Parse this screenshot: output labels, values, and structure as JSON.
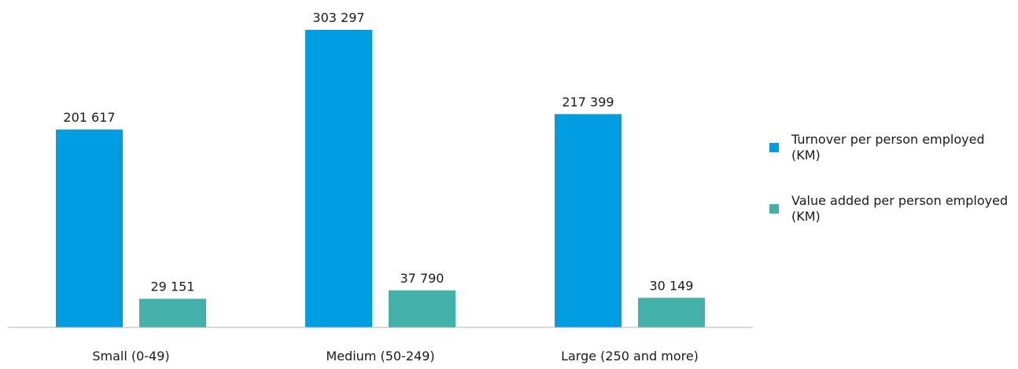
{
  "chart_data": {
    "type": "bar",
    "categories": [
      "Small (0-49)",
      "Medium (50-249)",
      "Large (250 and more)"
    ],
    "series": [
      {
        "name": "Turnover per person employed (KM)",
        "color": "#009ee0",
        "values": [
          201617,
          303297,
          217399
        ],
        "labels": [
          "201 617",
          "303 297",
          "217 399"
        ]
      },
      {
        "name": "Value added per person employed (KM)",
        "color": "#43b0aa",
        "values": [
          29151,
          37790,
          30149
        ],
        "labels": [
          "29 151",
          "37 790",
          "30 149"
        ]
      }
    ],
    "ylim": [
      0,
      320000
    ],
    "grid": false,
    "legend_position": "right"
  }
}
